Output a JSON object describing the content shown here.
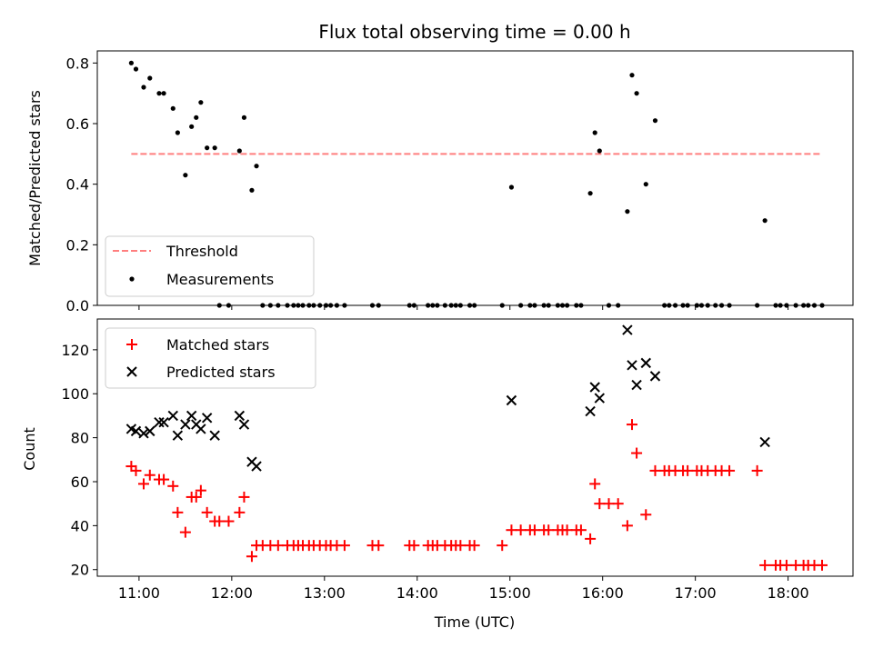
{
  "chart_data": [
    {
      "type": "scatter",
      "title": "Flux total observing time = 0.00 h",
      "xlabel": "",
      "ylabel": "Matched/Predicted stars",
      "ylim": [
        0,
        0.84
      ],
      "yticks": [
        "0.0",
        "0.2",
        "0.4",
        "0.6",
        "0.8"
      ],
      "ytick_values": [
        0,
        0.2,
        0.4,
        0.6,
        0.8
      ],
      "legend_placement": "lower-left",
      "threshold": {
        "name": "Threshold",
        "value": 0.5,
        "x_start": "10:55",
        "x_end": "18:22",
        "color": "#ff7f7f"
      },
      "series": [
        {
          "name": "Measurements",
          "color": "#000000",
          "x": [
            "10:55",
            "10:58",
            "11:03",
            "11:07",
            "11:13",
            "11:16",
            "11:22",
            "11:25",
            "11:30",
            "11:34",
            "11:37",
            "11:40",
            "11:44",
            "11:49",
            "11:52",
            "11:58",
            "12:05",
            "12:08",
            "12:13",
            "12:16",
            "12:20",
            "12:25",
            "12:30",
            "12:36",
            "12:40",
            "12:43",
            "12:46",
            "12:50",
            "12:53",
            "12:57",
            "13:01",
            "13:04",
            "13:08",
            "13:13",
            "13:31",
            "13:35",
            "13:55",
            "13:58",
            "14:07",
            "14:10",
            "14:13",
            "14:18",
            "14:22",
            "14:25",
            "14:28",
            "14:34",
            "14:37",
            "14:55",
            "15:01",
            "15:07",
            "15:13",
            "15:16",
            "15:22",
            "15:25",
            "15:31",
            "15:34",
            "15:37",
            "15:43",
            "15:46",
            "15:52",
            "15:55",
            "15:58",
            "16:04",
            "16:10",
            "16:16",
            "16:19",
            "16:22",
            "16:28",
            "16:34",
            "16:40",
            "16:43",
            "16:47",
            "16:52",
            "16:55",
            "17:01",
            "17:04",
            "17:08",
            "17:13",
            "17:17",
            "17:22",
            "17:40",
            "17:45",
            "17:52",
            "17:55",
            "17:59",
            "18:05",
            "18:10",
            "18:13",
            "18:17",
            "18:22"
          ],
          "y": [
            0.8,
            0.78,
            0.72,
            0.75,
            0.7,
            0.7,
            0.65,
            0.57,
            0.43,
            0.59,
            0.62,
            0.67,
            0.52,
            0.52,
            0,
            0,
            0.51,
            0.62,
            0.38,
            0.46,
            0,
            0,
            0,
            0,
            0,
            0,
            0,
            0,
            0,
            0,
            0,
            0,
            0,
            0,
            0,
            0,
            0,
            0,
            0,
            0,
            0,
            0,
            0,
            0,
            0,
            0,
            0,
            0,
            0.39,
            0,
            0,
            0,
            0,
            0,
            0,
            0,
            0,
            0,
            0,
            0.37,
            0.57,
            0.51,
            0,
            0,
            0.31,
            0.76,
            0.7,
            0.4,
            0.61,
            0,
            0,
            0,
            0,
            0,
            0,
            0,
            0,
            0,
            0,
            0,
            0,
            0.28,
            0,
            0,
            0,
            0,
            0,
            0,
            0,
            0
          ]
        }
      ]
    },
    {
      "type": "scatter",
      "title": "",
      "xlabel": "Time (UTC)",
      "ylabel": "Count",
      "ylim": [
        17,
        134
      ],
      "yticks": [
        "20",
        "40",
        "60",
        "80",
        "100",
        "120"
      ],
      "ytick_values": [
        20,
        40,
        60,
        80,
        100,
        120
      ],
      "xlim": [
        "10:33",
        "18:42"
      ],
      "xticks": [
        "11:00",
        "12:00",
        "13:00",
        "14:00",
        "15:00",
        "16:00",
        "17:00",
        "18:00"
      ],
      "legend_placement": "upper-left",
      "series": [
        {
          "name": "Matched stars",
          "color": "#ff0000",
          "marker": "plus",
          "x": [
            "10:55",
            "10:58",
            "11:03",
            "11:07",
            "11:13",
            "11:16",
            "11:22",
            "11:25",
            "11:30",
            "11:34",
            "11:37",
            "11:40",
            "11:44",
            "11:49",
            "11:52",
            "11:58",
            "12:05",
            "12:08",
            "12:13",
            "12:16",
            "12:20",
            "12:25",
            "12:30",
            "12:36",
            "12:40",
            "12:43",
            "12:46",
            "12:50",
            "12:53",
            "12:57",
            "13:01",
            "13:04",
            "13:08",
            "13:13",
            "13:31",
            "13:35",
            "13:55",
            "13:58",
            "14:07",
            "14:10",
            "14:13",
            "14:18",
            "14:22",
            "14:25",
            "14:28",
            "14:34",
            "14:37",
            "14:55",
            "15:01",
            "15:07",
            "15:13",
            "15:16",
            "15:22",
            "15:25",
            "15:31",
            "15:34",
            "15:37",
            "15:43",
            "15:46",
            "15:52",
            "15:55",
            "15:58",
            "16:04",
            "16:10",
            "16:16",
            "16:19",
            "16:22",
            "16:28",
            "16:34",
            "16:40",
            "16:43",
            "16:47",
            "16:52",
            "16:55",
            "17:01",
            "17:04",
            "17:08",
            "17:13",
            "17:17",
            "17:22",
            "17:40",
            "17:45",
            "17:52",
            "17:55",
            "17:59",
            "18:05",
            "18:10",
            "18:13",
            "18:17",
            "18:22"
          ],
          "y": [
            67,
            65,
            59,
            63,
            61,
            61,
            58,
            46,
            37,
            53,
            53,
            56,
            46,
            42,
            42,
            42,
            46,
            53,
            26,
            31,
            31,
            31,
            31,
            31,
            31,
            31,
            31,
            31,
            31,
            31,
            31,
            31,
            31,
            31,
            31,
            31,
            31,
            31,
            31,
            31,
            31,
            31,
            31,
            31,
            31,
            31,
            31,
            31,
            38,
            38,
            38,
            38,
            38,
            38,
            38,
            38,
            38,
            38,
            38,
            34,
            59,
            50,
            50,
            50,
            40,
            86,
            73,
            45,
            65,
            65,
            65,
            65,
            65,
            65,
            65,
            65,
            65,
            65,
            65,
            65,
            65,
            22,
            22,
            22,
            22,
            22,
            22,
            22,
            22,
            22
          ]
        },
        {
          "name": "Predicted stars",
          "color": "#000000",
          "marker": "cross",
          "x": [
            "10:55",
            "10:58",
            "11:03",
            "11:07",
            "11:13",
            "11:16",
            "11:22",
            "11:25",
            "11:30",
            "11:34",
            "11:37",
            "11:40",
            "11:44",
            "11:49",
            "12:05",
            "12:08",
            "12:13",
            "12:16",
            "15:01",
            "15:52",
            "15:55",
            "15:58",
            "16:16",
            "16:19",
            "16:22",
            "16:28",
            "16:34",
            "17:45"
          ],
          "y": [
            84,
            83,
            82,
            83,
            87,
            87,
            90,
            81,
            86,
            90,
            86,
            84,
            89,
            81,
            90,
            86,
            69,
            67,
            97,
            92,
            103,
            98,
            129,
            113,
            104,
            114,
            108,
            78
          ]
        }
      ]
    }
  ]
}
